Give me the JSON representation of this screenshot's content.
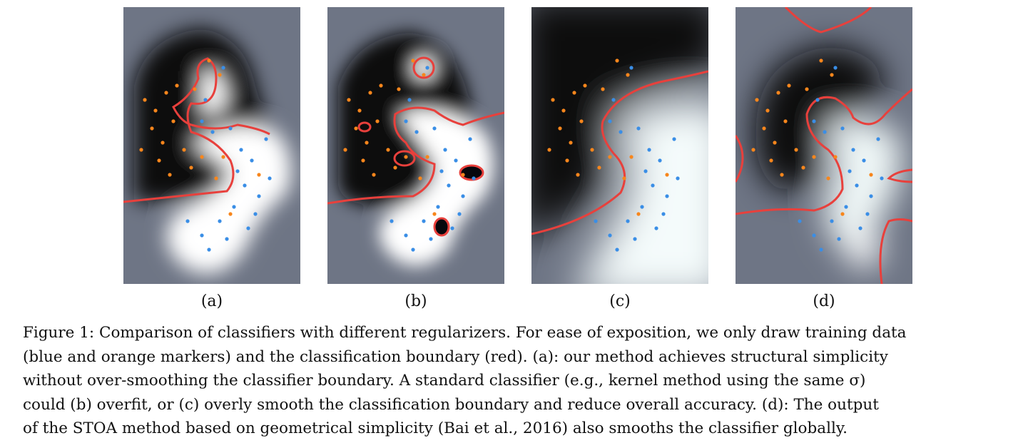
{
  "figure": {
    "panels": [
      {
        "label": "(a)"
      },
      {
        "label": "(b)"
      },
      {
        "label": "(c)"
      },
      {
        "label": "(d)"
      }
    ],
    "caption_lines": [
      "Figure 1: Comparison of classifiers with different regularizers. For ease of exposition, we only draw training data",
      "(blue and orange markers) and the classification boundary (red). (a): our method achieves structural simplicity",
      "without over-smoothing the classifier boundary. A standard classifier (e.g., kernel method using the same σ)",
      "could (b) overfit, or (c) overly smooth the classification boundary and reduce overall accuracy. (d): The output",
      "of the STOA method based on geometrical simplicity (Bai et al., 2016) also smooths the classifier globally."
    ],
    "colors": {
      "background_gray": "#6e7585",
      "dark_region": "#07070c",
      "light_region": "#ffffff",
      "boundary": "#e8403c",
      "blue_marker": "#3a8ee6",
      "orange_marker": "#f7861c"
    }
  }
}
